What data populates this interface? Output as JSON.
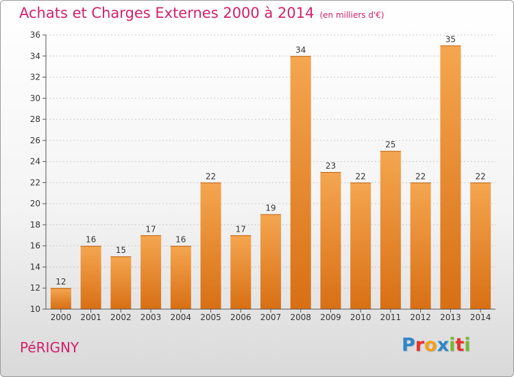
{
  "title": "Achats et Charges Externes 2000 à 2014",
  "unit": "(en milliers d'€)",
  "town": "PéRIGNY",
  "brand": {
    "letters": [
      "P",
      "r",
      "o",
      "x",
      "i",
      "t",
      "i"
    ],
    "colors": [
      "#2d87c8",
      "#e8322d",
      "#f2a01e",
      "#2d87c8",
      "#78b833",
      "#e8322d",
      "#78b833"
    ]
  },
  "colors": {
    "bar_light": "#f5a650",
    "bar_dark": "#d86f14",
    "title": "#d2206a"
  },
  "chart_data": {
    "type": "bar",
    "title": "Achats et Charges Externes 2000 à 2014",
    "categories": [
      "2000",
      "2001",
      "2002",
      "2003",
      "2004",
      "2005",
      "2006",
      "2007",
      "2008",
      "2009",
      "2010",
      "2011",
      "2012",
      "2013",
      "2014"
    ],
    "values": [
      12,
      16,
      15,
      17,
      16,
      22,
      17,
      19,
      34,
      23,
      22,
      25,
      22,
      35,
      22
    ],
    "ylim": [
      10,
      36
    ],
    "yticks": [
      10,
      12,
      14,
      16,
      18,
      20,
      22,
      24,
      26,
      28,
      30,
      32,
      34,
      36
    ],
    "grid": true
  }
}
